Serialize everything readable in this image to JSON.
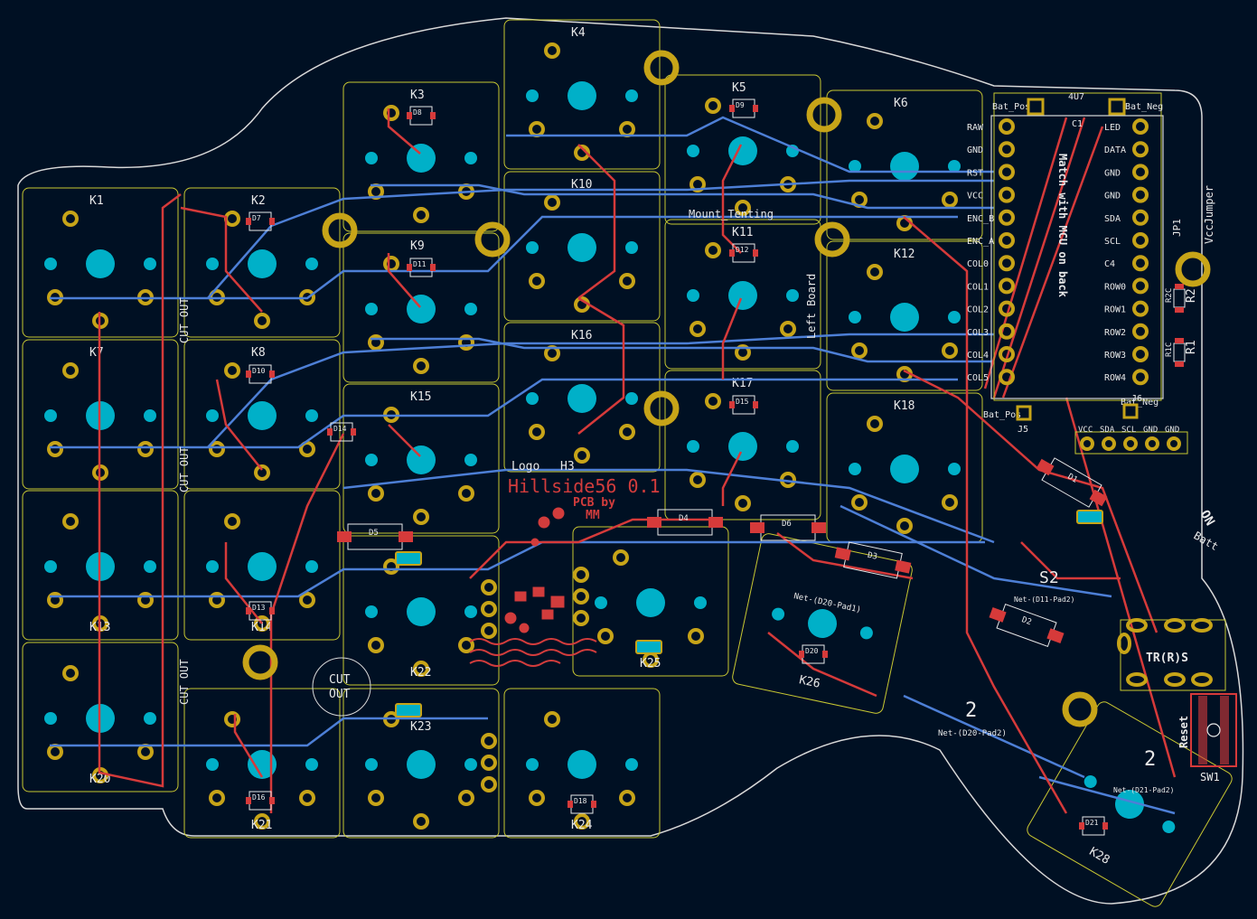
{
  "colors": {
    "background": "#001023",
    "outline": "#d8d8d8",
    "footprint": "#c8c832",
    "front_copper": "#d63a3a",
    "back_copper": "#4d7fd6",
    "pad": "#c7a418",
    "hole": "#00b0c8",
    "silk_red": "#d23c3c",
    "silk_white": "#e8e8e8"
  },
  "title": {
    "name": "Hillside56 0.1",
    "credit_line1": "PCB by",
    "credit_line2": "MM",
    "logo": "Logo",
    "logo_ref": "H3"
  },
  "keys": [
    {
      "label": "K1"
    },
    {
      "label": "K2"
    },
    {
      "label": "K3"
    },
    {
      "label": "K4"
    },
    {
      "label": "K5"
    },
    {
      "label": "K6"
    },
    {
      "label": "K7"
    },
    {
      "label": "K8"
    },
    {
      "label": "K9"
    },
    {
      "label": "K10"
    },
    {
      "label": "K11"
    },
    {
      "label": "K12"
    },
    {
      "label": "K13"
    },
    {
      "label": "K14"
    },
    {
      "label": "K15"
    },
    {
      "label": "K16"
    },
    {
      "label": "K17"
    },
    {
      "label": "K18"
    },
    {
      "label": "K20"
    },
    {
      "label": "K21"
    },
    {
      "label": "K22"
    },
    {
      "label": "K23"
    },
    {
      "label": "K24"
    },
    {
      "label": "K25"
    },
    {
      "label": "K26"
    },
    {
      "label": "K28"
    }
  ],
  "diodes": [
    "D7",
    "D8",
    "D9",
    "D10",
    "D11",
    "D12",
    "D13",
    "D14",
    "D15",
    "D16",
    "D18",
    "D20",
    "D21"
  ],
  "controller": {
    "left_pins": [
      "RAW",
      "GND",
      "RST",
      "VCC",
      "ENC_B",
      "ENC_A",
      "COL0",
      "COL1",
      "COL2",
      "COL3",
      "COL4",
      "COL5"
    ],
    "right_pins": [
      "LED",
      "DATA",
      "GND",
      "GND",
      "SDA",
      "SCL",
      "C4",
      "ROW0",
      "ROW1",
      "ROW2",
      "ROW3",
      "ROW4"
    ],
    "top_left": "Bat_Pos",
    "top_right": "Bat_Neg",
    "top_mid": "C1",
    "top_ref": "4U7",
    "vertical": "Match with MCU on back",
    "bottom_left": "Bat_Pos",
    "bottom_left_ref": "J5",
    "bottom_right": "Bat_Neg",
    "bottom_right_ref": "J6"
  },
  "i2c_header": [
    "VCC",
    "SDA",
    "SCL",
    "GND",
    "GND"
  ],
  "labels": {
    "mount_tenting": "Mount_Tenting",
    "left_board": "Left Board",
    "vcc_jumper": "VccJumper",
    "jp1": "JP1",
    "r1": "R1",
    "r2": "R2",
    "r1c": "R1C",
    "r2c": "R2C",
    "cut_out": "CUT OUT",
    "cut_out_circle1": "CUT",
    "cut_out_circle2": "OUT",
    "trrs": "TR(R)S",
    "reset": "Reset",
    "sw1": "SW1",
    "s2": "S2",
    "d1": "D1",
    "d2": "D2",
    "d3": "D3",
    "d4": "D4",
    "d5": "D5",
    "d6": "D6",
    "on": "ON",
    "batt": "Batt",
    "num2a": "2",
    "num2b": "2",
    "net1": "Net-(D20-Pad1)",
    "net2": "Net-(D20-Pad2)",
    "net3": "Net-(D21-Pad2)",
    "net4": "Net-(D11-Pad2)"
  }
}
